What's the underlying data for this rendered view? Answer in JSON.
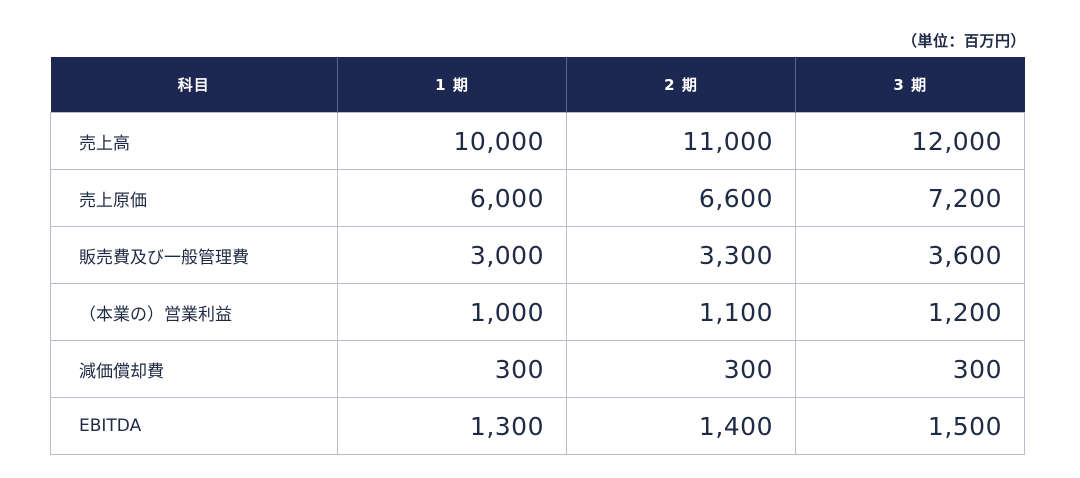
{
  "unit_note": "（単位：百万円）",
  "table": {
    "headers": [
      "科目",
      "1 期",
      "2 期",
      "3 期"
    ],
    "rows": [
      {
        "label": "売上高",
        "values": [
          "10,000",
          "11,000",
          "12,000"
        ]
      },
      {
        "label": "売上原価",
        "values": [
          "6,000",
          "6,600",
          "7,200"
        ]
      },
      {
        "label": "販売費及び一般管理費",
        "values": [
          "3,000",
          "3,300",
          "3,600"
        ]
      },
      {
        "label": "（本業の）営業利益",
        "values": [
          "1,000",
          "1,100",
          "1,200"
        ]
      },
      {
        "label": "減価償却費",
        "values": [
          "300",
          "300",
          "300"
        ]
      },
      {
        "label": "EBITDA",
        "values": [
          "1,300",
          "1,400",
          "1,500"
        ]
      }
    ]
  },
  "colors": {
    "header_bg": "#1c2752",
    "header_text": "#ffffff",
    "border": "#b9bdcc",
    "text": "#1f2a44"
  }
}
